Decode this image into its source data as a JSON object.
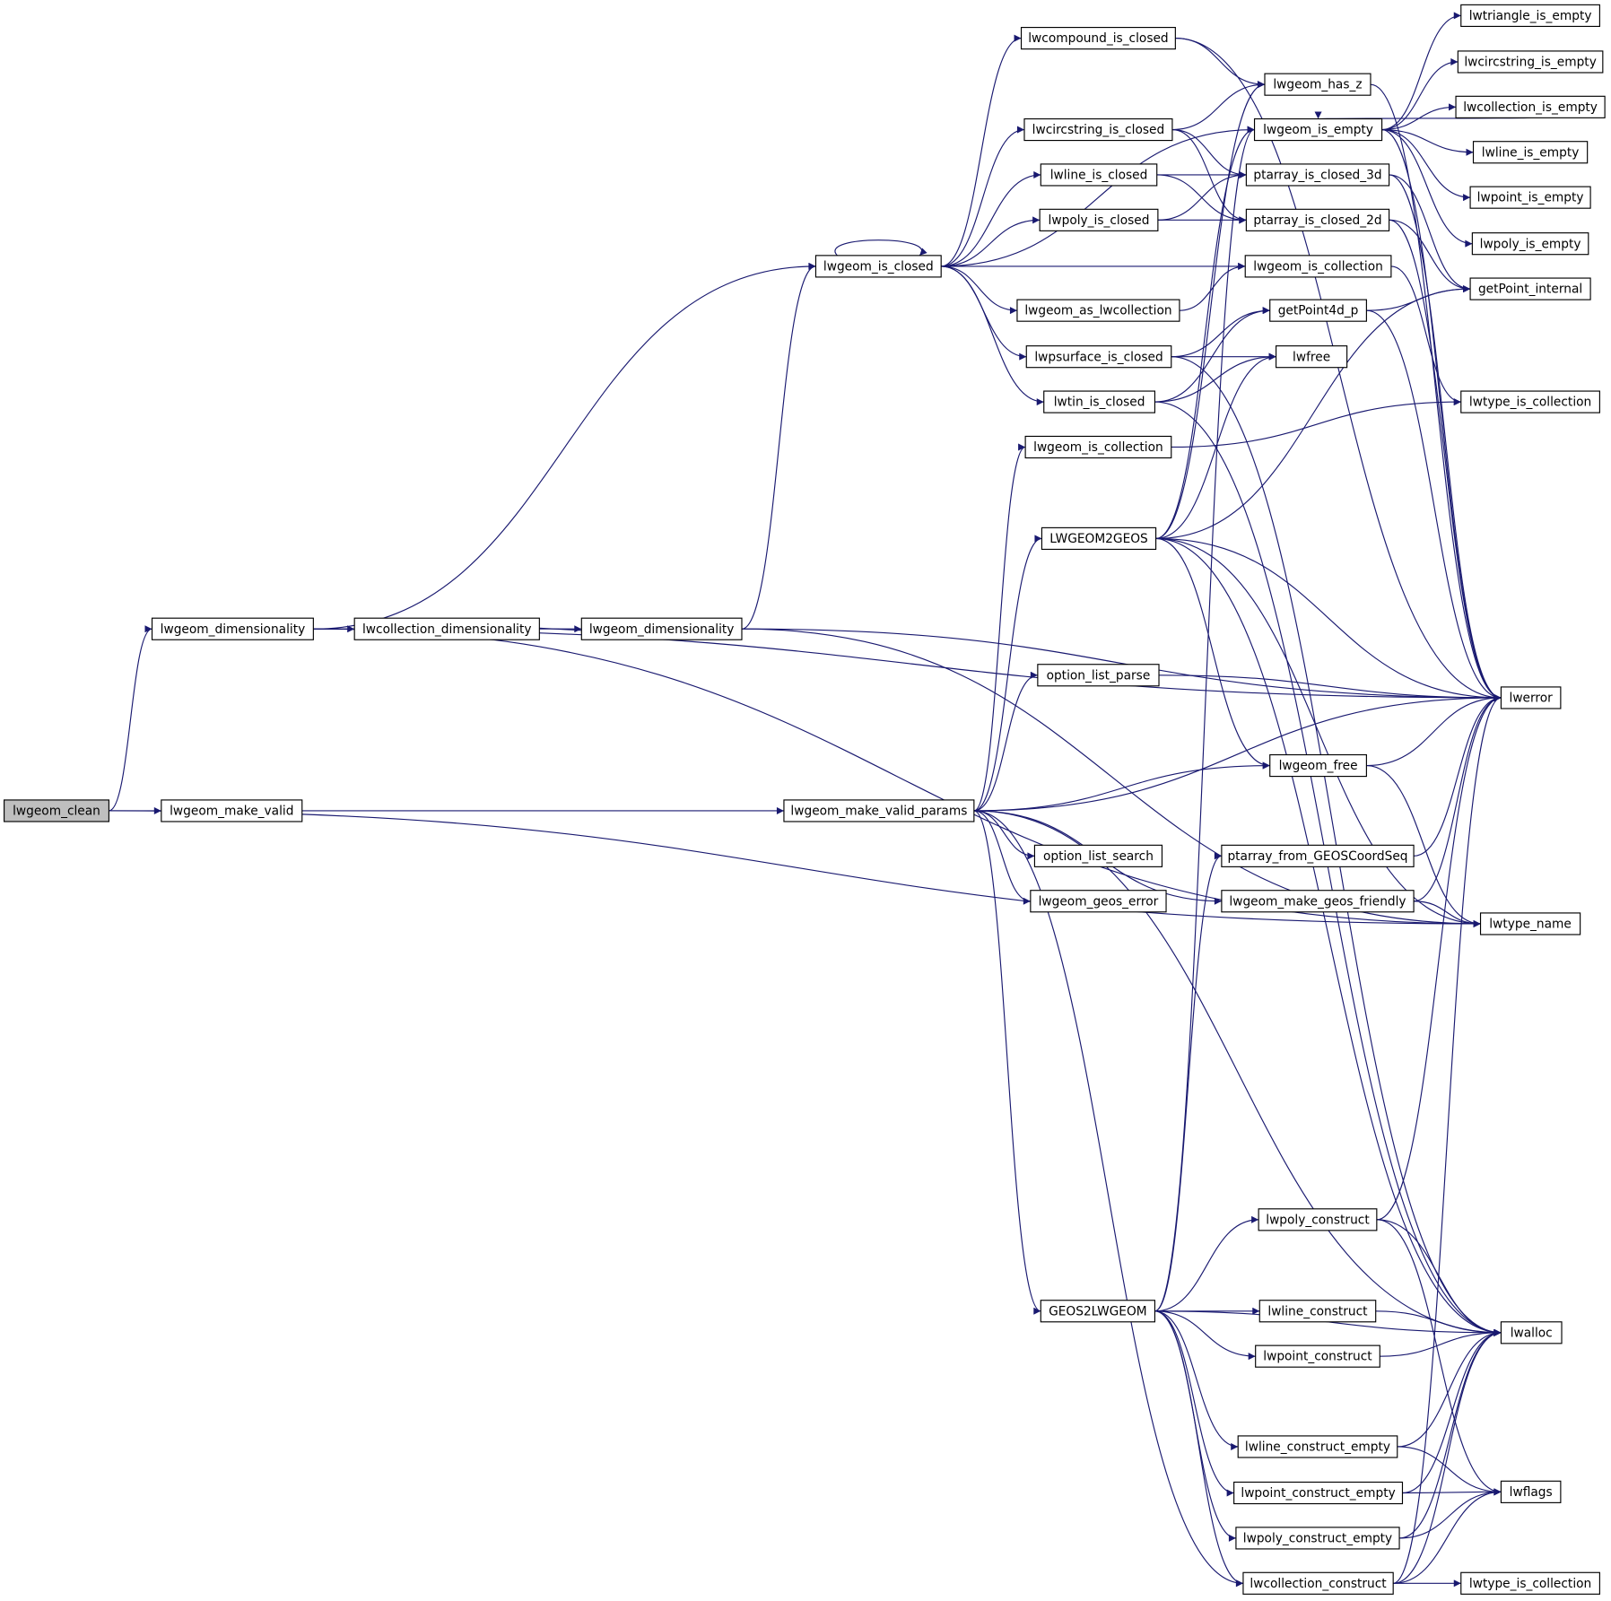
{
  "colors": {
    "edge": "#191970",
    "root_fill": "#bfbfbf",
    "normal_border": "#000000",
    "truncated_border": "#ff0000"
  },
  "nodes": [
    {
      "id": "clean",
      "label": "lwgeom_clean",
      "style": "root"
    },
    {
      "id": "make_valid",
      "label": "lwgeom_make_valid"
    },
    {
      "id": "dim1",
      "label": "lwgeom_dimensionality"
    },
    {
      "id": "coll_dim",
      "label": "lwcollection_dimensionality"
    },
    {
      "id": "dim2",
      "label": "lwgeom_dimensionality"
    },
    {
      "id": "is_closed",
      "label": "lwgeom_is_closed"
    },
    {
      "id": "mvp",
      "label": "lwgeom_make_valid_params"
    },
    {
      "id": "compound",
      "label": "lwcompound_is_closed"
    },
    {
      "id": "circ",
      "label": "lwcircstring_is_closed"
    },
    {
      "id": "line_closed",
      "label": "lwline_is_closed"
    },
    {
      "id": "poly_closed",
      "label": "lwpoly_is_closed"
    },
    {
      "id": "as_coll",
      "label": "lwgeom_as_lwcollection"
    },
    {
      "id": "psurf",
      "label": "lwpsurface_is_closed"
    },
    {
      "id": "tin",
      "label": "lwtin_is_closed"
    },
    {
      "id": "is_coll_mid",
      "label": "lwgeom_is_collection"
    },
    {
      "id": "l2g",
      "label": "LWGEOM2GEOS",
      "style": "truncated"
    },
    {
      "id": "olp",
      "label": "option_list_parse",
      "style": "truncated"
    },
    {
      "id": "ols",
      "label": "option_list_search"
    },
    {
      "id": "geos_err",
      "label": "lwgeom_geos_error"
    },
    {
      "id": "g2l",
      "label": "GEOS2LWGEOM"
    },
    {
      "id": "has_z",
      "label": "lwgeom_has_z"
    },
    {
      "id": "is_empty",
      "label": "lwgeom_is_empty"
    },
    {
      "id": "pa3d",
      "label": "ptarray_is_closed_3d"
    },
    {
      "id": "pa2d",
      "label": "ptarray_is_closed_2d"
    },
    {
      "id": "is_coll_r",
      "label": "lwgeom_is_collection"
    },
    {
      "id": "gp4d",
      "label": "getPoint4d_p"
    },
    {
      "id": "lwfree",
      "label": "lwfree"
    },
    {
      "id": "gfree",
      "label": "lwgeom_free",
      "style": "truncated"
    },
    {
      "id": "pafg",
      "label": "ptarray_from_GEOSCoordSeq",
      "style": "truncated"
    },
    {
      "id": "mgf",
      "label": "lwgeom_make_geos_friendly",
      "style": "truncated"
    },
    {
      "id": "poly_c",
      "label": "lwpoly_construct"
    },
    {
      "id": "line_c",
      "label": "lwline_construct"
    },
    {
      "id": "point_c",
      "label": "lwpoint_construct"
    },
    {
      "id": "line_ce",
      "label": "lwline_construct_empty",
      "style": "truncated"
    },
    {
      "id": "point_ce",
      "label": "lwpoint_construct_empty",
      "style": "truncated"
    },
    {
      "id": "poly_ce",
      "label": "lwpoly_construct_empty"
    },
    {
      "id": "coll_c",
      "label": "lwcollection_construct"
    },
    {
      "id": "tri_e",
      "label": "lwtriangle_is_empty"
    },
    {
      "id": "circ_e",
      "label": "lwcircstring_is_empty"
    },
    {
      "id": "coll_e",
      "label": "lwcollection_is_empty"
    },
    {
      "id": "line_e",
      "label": "lwline_is_empty"
    },
    {
      "id": "point_e",
      "label": "lwpoint_is_empty"
    },
    {
      "id": "poly_e",
      "label": "lwpoly_is_empty"
    },
    {
      "id": "gpi",
      "label": "getPoint_internal",
      "style": "truncated"
    },
    {
      "id": "tic_top",
      "label": "lwtype_is_collection"
    },
    {
      "id": "lwerror",
      "label": "lwerror"
    },
    {
      "id": "lwtype_name",
      "label": "lwtype_name"
    },
    {
      "id": "lwalloc",
      "label": "lwalloc"
    },
    {
      "id": "lwflags",
      "label": "lwflags"
    },
    {
      "id": "tic_bot",
      "label": "lwtype_is_collection"
    }
  ],
  "edges": [
    [
      "clean",
      "dim1"
    ],
    [
      "clean",
      "make_valid"
    ],
    [
      "clean",
      "lwtype_name"
    ],
    [
      "make_valid",
      "mvp"
    ],
    [
      "dim1",
      "is_closed"
    ],
    [
      "dim1",
      "coll_dim"
    ],
    [
      "dim1",
      "lwerror"
    ],
    [
      "dim1",
      "lwtype_name"
    ],
    [
      "coll_dim",
      "dim2"
    ],
    [
      "dim2",
      "coll_dim"
    ],
    [
      "dim2",
      "is_closed"
    ],
    [
      "dim2",
      "lwerror"
    ],
    [
      "dim2",
      "lwtype_name"
    ],
    [
      "is_closed",
      "is_closed"
    ],
    [
      "is_closed",
      "compound"
    ],
    [
      "is_closed",
      "circ"
    ],
    [
      "is_closed",
      "line_closed"
    ],
    [
      "is_closed",
      "poly_closed"
    ],
    [
      "is_closed",
      "is_coll_r"
    ],
    [
      "is_closed",
      "as_coll"
    ],
    [
      "is_closed",
      "psurf"
    ],
    [
      "is_closed",
      "tin"
    ],
    [
      "is_closed",
      "is_empty"
    ],
    [
      "compound",
      "has_z"
    ],
    [
      "compound",
      "lwerror"
    ],
    [
      "circ",
      "has_z"
    ],
    [
      "circ",
      "pa3d"
    ],
    [
      "circ",
      "pa2d"
    ],
    [
      "line_closed",
      "pa3d"
    ],
    [
      "line_closed",
      "pa2d"
    ],
    [
      "poly_closed",
      "pa3d"
    ],
    [
      "poly_closed",
      "pa2d"
    ],
    [
      "as_coll",
      "is_coll_r"
    ],
    [
      "psurf",
      "gp4d"
    ],
    [
      "psurf",
      "lwfree"
    ],
    [
      "psurf",
      "lwalloc"
    ],
    [
      "tin",
      "gp4d"
    ],
    [
      "tin",
      "lwfree"
    ],
    [
      "tin",
      "lwalloc"
    ],
    [
      "is_coll_mid",
      "tic_top"
    ],
    [
      "is_empty",
      "tri_e"
    ],
    [
      "is_empty",
      "circ_e"
    ],
    [
      "is_empty",
      "coll_e"
    ],
    [
      "is_empty",
      "line_e"
    ],
    [
      "is_empty",
      "point_e"
    ],
    [
      "is_empty",
      "poly_e"
    ],
    [
      "is_empty",
      "lwerror"
    ],
    [
      "coll_e",
      "is_empty"
    ],
    [
      "has_z",
      "lwerror"
    ],
    [
      "pa3d",
      "gpi"
    ],
    [
      "pa3d",
      "lwerror"
    ],
    [
      "pa2d",
      "gpi"
    ],
    [
      "pa2d",
      "lwerror"
    ],
    [
      "is_coll_r",
      "tic_top"
    ],
    [
      "gp4d",
      "gpi"
    ],
    [
      "gp4d",
      "lwerror"
    ],
    [
      "l2g",
      "has_z"
    ],
    [
      "l2g",
      "is_empty"
    ],
    [
      "l2g",
      "gpi"
    ],
    [
      "l2g",
      "lwfree"
    ],
    [
      "l2g",
      "lwerror"
    ],
    [
      "l2g",
      "lwtype_name"
    ],
    [
      "l2g",
      "gfree"
    ],
    [
      "l2g",
      "lwalloc"
    ],
    [
      "mvp",
      "is_coll_mid"
    ],
    [
      "mvp",
      "l2g"
    ],
    [
      "mvp",
      "olp"
    ],
    [
      "mvp",
      "lwerror"
    ],
    [
      "mvp",
      "gfree"
    ],
    [
      "mvp",
      "ols"
    ],
    [
      "mvp",
      "geos_err"
    ],
    [
      "mvp",
      "mgf"
    ],
    [
      "mvp",
      "g2l"
    ],
    [
      "mvp",
      "lwalloc"
    ],
    [
      "mvp",
      "coll_c"
    ],
    [
      "olp",
      "lwerror"
    ],
    [
      "gfree",
      "lwerror"
    ],
    [
      "gfree",
      "lwtype_name"
    ],
    [
      "pafg",
      "lwerror"
    ],
    [
      "mgf",
      "lwerror"
    ],
    [
      "mgf",
      "lwtype_name"
    ],
    [
      "g2l",
      "pafg"
    ],
    [
      "g2l",
      "is_empty"
    ],
    [
      "g2l",
      "poly_c"
    ],
    [
      "g2l",
      "lwalloc"
    ],
    [
      "g2l",
      "line_c"
    ],
    [
      "g2l",
      "point_c"
    ],
    [
      "g2l",
      "line_ce"
    ],
    [
      "g2l",
      "point_ce"
    ],
    [
      "g2l",
      "poly_ce"
    ],
    [
      "g2l",
      "coll_c"
    ],
    [
      "poly_c",
      "lwerror"
    ],
    [
      "poly_c",
      "lwalloc"
    ],
    [
      "poly_c",
      "lwflags"
    ],
    [
      "line_c",
      "lwalloc"
    ],
    [
      "point_c",
      "lwalloc"
    ],
    [
      "line_ce",
      "lwalloc"
    ],
    [
      "line_ce",
      "lwflags"
    ],
    [
      "point_ce",
      "lwalloc"
    ],
    [
      "point_ce",
      "lwflags"
    ],
    [
      "poly_ce",
      "lwalloc"
    ],
    [
      "poly_ce",
      "lwflags"
    ],
    [
      "coll_c",
      "lwalloc"
    ],
    [
      "coll_c",
      "lwflags"
    ],
    [
      "coll_c",
      "lwerror"
    ],
    [
      "coll_c",
      "tic_bot"
    ]
  ]
}
